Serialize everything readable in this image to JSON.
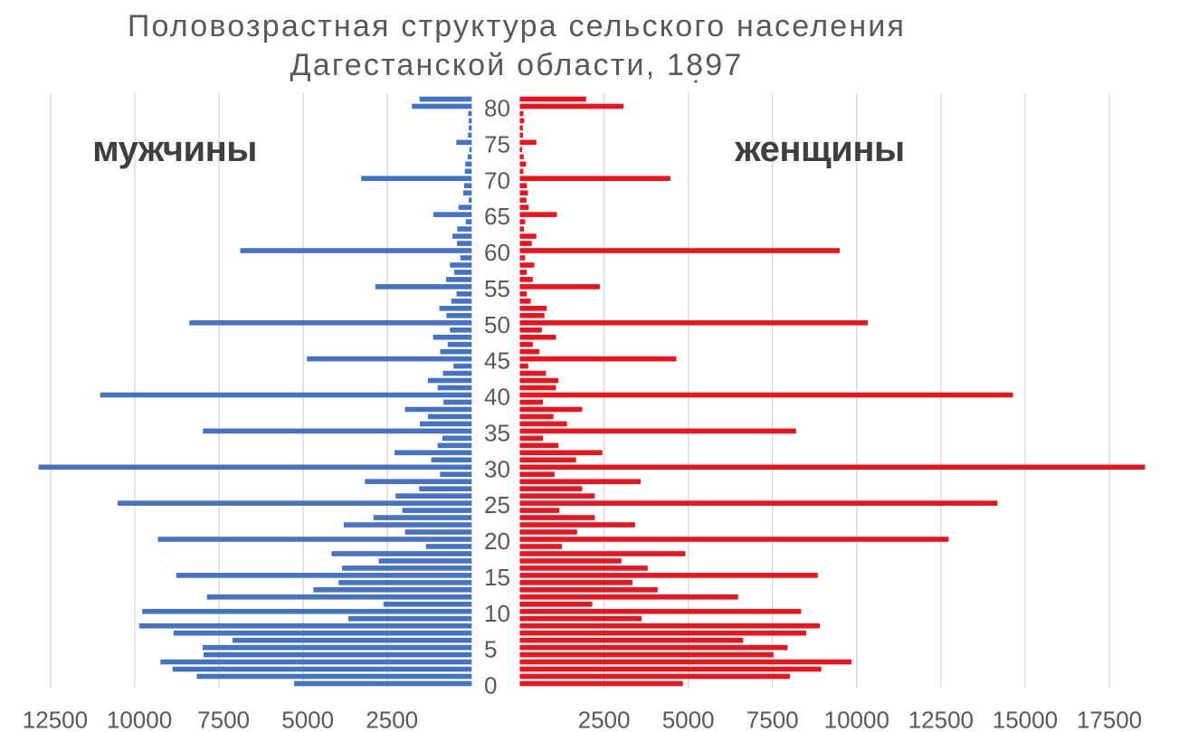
{
  "chart_data": {
    "type": "bar",
    "variant": "population-pyramid",
    "title": "Половозрастная структура сельского населения Дагестанской области, 1897",
    "title_lines": [
      "Половозрастная структура сельского населения",
      "Дагестанской области, 1897"
    ],
    "left_series_label": "мужчины",
    "right_series_label": "женщины",
    "age_axis_tick_labels": [
      "0",
      "5",
      "10",
      "15",
      "20",
      "25",
      "30",
      "35",
      "40",
      "45",
      "50",
      "55",
      "60",
      "65",
      "70",
      "75",
      "80"
    ],
    "left_axis_tick_labels": [
      "12500",
      "10000",
      "7500",
      "5000",
      "2500"
    ],
    "right_axis_tick_labels": [
      "2500",
      "5000",
      "7500",
      "10000",
      "12500",
      "15000",
      "17500"
    ],
    "left_axis_ticks": [
      12500,
      10000,
      7500,
      5000,
      2500
    ],
    "right_axis_ticks": [
      2500,
      5000,
      7500,
      10000,
      12500,
      15000,
      17500
    ],
    "age_min": 0,
    "age_max": 81,
    "grid": true,
    "legend": "none",
    "series": [
      {
        "name": "мужчины",
        "side": "left",
        "color": "#4472c4",
        "values": [
          5270,
          8160,
          8880,
          9240,
          7960,
          7990,
          7100,
          8850,
          9870,
          3660,
          9780,
          2620,
          7860,
          4700,
          3950,
          8770,
          3850,
          2760,
          4160,
          1355,
          9315,
          1980,
          3800,
          2915,
          2060,
          10510,
          2260,
          1560,
          3170,
          940,
          12860,
          1200,
          2290,
          1010,
          870,
          7980,
          1540,
          1300,
          1980,
          835,
          11030,
          1010,
          1300,
          855,
          540,
          4890,
          935,
          710,
          1145,
          645,
          8380,
          750,
          960,
          605,
          450,
          2860,
          760,
          520,
          645,
          335,
          6870,
          435,
          570,
          430,
          175,
          1140,
          390,
          90,
          250,
          225,
          3280,
          205,
          190,
          120,
          70,
          455,
          110,
          85,
          85,
          105,
          1775,
          1550
        ]
      },
      {
        "name": "женщины",
        "side": "right",
        "color": "#e9141d",
        "values": [
          4840,
          8020,
          8950,
          9845,
          7530,
          7950,
          6630,
          8500,
          8905,
          3615,
          8350,
          2150,
          6480,
          4090,
          3345,
          8845,
          3795,
          3015,
          4915,
          1250,
          12730,
          1700,
          3420,
          2225,
          1175,
          14180,
          2225,
          1850,
          3585,
          1030,
          18560,
          1670,
          2450,
          1145,
          690,
          8200,
          1400,
          1000,
          1850,
          685,
          14640,
          1075,
          1145,
          775,
          250,
          4645,
          580,
          385,
          1075,
          655,
          10330,
          730,
          800,
          325,
          205,
          2375,
          385,
          205,
          430,
          155,
          9500,
          355,
          490,
          120,
          160,
          1100,
          265,
          195,
          240,
          210,
          4470,
          105,
          185,
          115,
          70,
          490,
          95,
          90,
          130,
          105,
          3080,
          1970
        ]
      }
    ],
    "colors": {
      "male": "#4472c4",
      "female": "#e9141d",
      "gridline": "#d9d9d9",
      "text": "#595959",
      "series_label": "#3f3f3f",
      "background": "#ffffff"
    }
  }
}
